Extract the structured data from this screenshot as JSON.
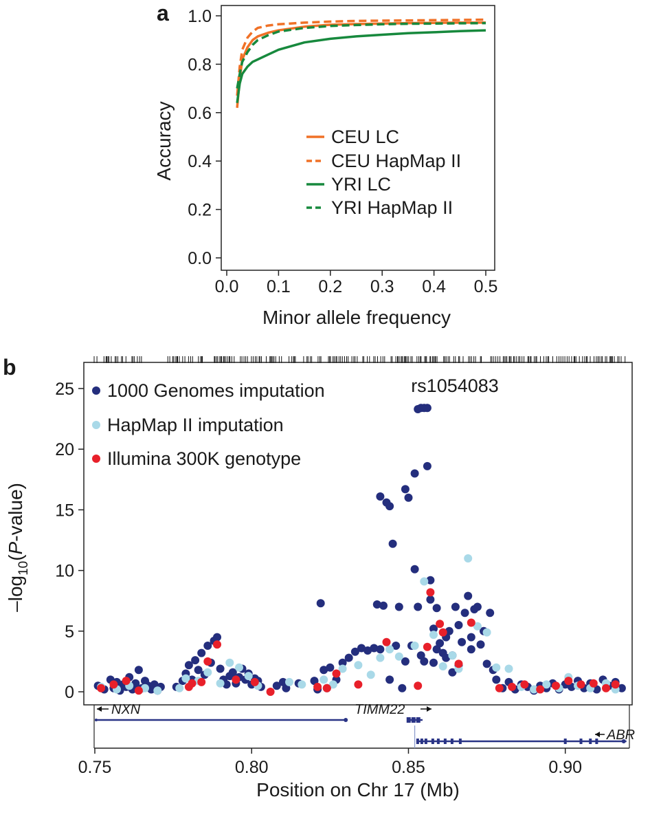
{
  "colors": {
    "ceu": "#f07127",
    "yri": "#17893d",
    "kg": "#242e7d",
    "hapmap": "#a9d9e8",
    "illumina": "#e8202a",
    "gene": "#2a3486"
  },
  "chart_data": [
    {
      "panel": "a",
      "type": "line",
      "xlabel": "Minor allele frequency",
      "ylabel": "Accuracy",
      "xlim": [
        0,
        0.5
      ],
      "ylim": [
        0,
        1
      ],
      "xticks": [
        "0.0",
        "0.1",
        "0.2",
        "0.3",
        "0.4",
        "0.5"
      ],
      "yticks": [
        "0.0",
        "0.2",
        "0.4",
        "0.6",
        "0.8",
        "1.0"
      ],
      "legend_position": "bottom-right",
      "series": [
        {
          "name": "CEU LC",
          "color": "ceu",
          "dash": false,
          "x": [
            0.02,
            0.025,
            0.03,
            0.04,
            0.05,
            0.06,
            0.08,
            0.1,
            0.15,
            0.2,
            0.25,
            0.3,
            0.35,
            0.4,
            0.45,
            0.5
          ],
          "y": [
            0.62,
            0.74,
            0.82,
            0.87,
            0.9,
            0.915,
            0.93,
            0.94,
            0.955,
            0.963,
            0.966,
            0.968,
            0.97,
            0.971,
            0.972,
            0.972
          ]
        },
        {
          "name": "CEU HapMap II",
          "color": "ceu",
          "dash": true,
          "x": [
            0.02,
            0.025,
            0.03,
            0.04,
            0.05,
            0.06,
            0.08,
            0.1,
            0.15,
            0.2,
            0.25,
            0.3,
            0.35,
            0.4,
            0.45,
            0.5
          ],
          "y": [
            0.67,
            0.79,
            0.86,
            0.91,
            0.935,
            0.95,
            0.96,
            0.965,
            0.972,
            0.976,
            0.979,
            0.98,
            0.981,
            0.982,
            0.983,
            0.984
          ]
        },
        {
          "name": "YRI LC",
          "color": "yri",
          "dash": false,
          "x": [
            0.02,
            0.025,
            0.03,
            0.04,
            0.05,
            0.06,
            0.08,
            0.1,
            0.15,
            0.2,
            0.25,
            0.3,
            0.35,
            0.4,
            0.45,
            0.5
          ],
          "y": [
            0.64,
            0.72,
            0.76,
            0.79,
            0.81,
            0.82,
            0.84,
            0.86,
            0.89,
            0.905,
            0.915,
            0.922,
            0.928,
            0.932,
            0.937,
            0.94
          ]
        },
        {
          "name": "YRI HapMap II",
          "color": "yri",
          "dash": true,
          "x": [
            0.02,
            0.025,
            0.03,
            0.04,
            0.05,
            0.06,
            0.08,
            0.1,
            0.15,
            0.2,
            0.25,
            0.3,
            0.35,
            0.4,
            0.45,
            0.5
          ],
          "y": [
            0.7,
            0.76,
            0.81,
            0.85,
            0.88,
            0.9,
            0.92,
            0.935,
            0.95,
            0.958,
            0.962,
            0.965,
            0.967,
            0.968,
            0.969,
            0.97
          ]
        }
      ]
    },
    {
      "panel": "b",
      "type": "scatter",
      "xlabel": "Position on Chr 17 (Mb)",
      "ylabel_prefix": "–log",
      "ylabel_sub": "10",
      "ylabel_open": "(",
      "ylabel_italic": "P",
      "ylabel_suffix": "-value)",
      "xlim": [
        0.75,
        0.92
      ],
      "ylim": [
        -1,
        27
      ],
      "xticks": [
        "0.75",
        "0.80",
        "0.85",
        "0.90"
      ],
      "yticks": [
        "0",
        "5",
        "10",
        "15",
        "20",
        "25"
      ],
      "annotation": {
        "text": "rs1054083",
        "x": 0.8555,
        "y": 23.3
      },
      "legend_position": "top-left",
      "series": [
        {
          "name": "1000 Genomes imputation",
          "color": "kg",
          "points": [
            [
              0.751,
              0.5
            ],
            [
              0.753,
              0.2
            ],
            [
              0.755,
              1.0
            ],
            [
              0.756,
              0.3
            ],
            [
              0.757,
              0.8
            ],
            [
              0.758,
              0.1
            ],
            [
              0.759,
              0.6
            ],
            [
              0.76,
              0.4
            ],
            [
              0.761,
              1.2
            ],
            [
              0.762,
              0.2
            ],
            [
              0.763,
              0.7
            ],
            [
              0.764,
              1.8
            ],
            [
              0.765,
              0.3
            ],
            [
              0.766,
              0.9
            ],
            [
              0.767,
              0.5
            ],
            [
              0.768,
              0.2
            ],
            [
              0.769,
              0.6
            ],
            [
              0.77,
              0.1
            ],
            [
              0.771,
              0.4
            ],
            [
              0.776,
              0.4
            ],
            [
              0.778,
              0.9
            ],
            [
              0.779,
              1.5
            ],
            [
              0.78,
              2.2
            ],
            [
              0.781,
              1.0
            ],
            [
              0.782,
              2.6
            ],
            [
              0.783,
              1.8
            ],
            [
              0.784,
              3.2
            ],
            [
              0.785,
              1.4
            ],
            [
              0.786,
              3.8
            ],
            [
              0.787,
              2.4
            ],
            [
              0.788,
              4.2
            ],
            [
              0.789,
              4.5
            ],
            [
              0.79,
              1.9
            ],
            [
              0.791,
              1.0
            ],
            [
              0.792,
              0.6
            ],
            [
              0.793,
              1.3
            ],
            [
              0.794,
              1.6
            ],
            [
              0.795,
              0.7
            ],
            [
              0.796,
              1.2
            ],
            [
              0.797,
              1.9
            ],
            [
              0.798,
              1.0
            ],
            [
              0.799,
              1.5
            ],
            [
              0.8,
              0.6
            ],
            [
              0.801,
              1.1
            ],
            [
              0.802,
              0.9
            ],
            [
              0.803,
              0.4
            ],
            [
              0.808,
              0.5
            ],
            [
              0.81,
              0.8
            ],
            [
              0.811,
              0.3
            ],
            [
              0.815,
              0.7
            ],
            [
              0.82,
              0.9
            ],
            [
              0.821,
              0.2
            ],
            [
              0.822,
              7.3
            ],
            [
              0.823,
              1.8
            ],
            [
              0.824,
              0.3
            ],
            [
              0.825,
              2.0
            ],
            [
              0.827,
              1.0
            ],
            [
              0.829,
              2.4
            ],
            [
              0.831,
              2.8
            ],
            [
              0.833,
              3.3
            ],
            [
              0.835,
              3.6
            ],
            [
              0.837,
              3.4
            ],
            [
              0.839,
              3.6
            ],
            [
              0.84,
              7.2
            ],
            [
              0.841,
              16.1
            ],
            [
              0.841,
              3.5
            ],
            [
              0.842,
              7.1
            ],
            [
              0.843,
              15.6
            ],
            [
              0.844,
              15.3
            ],
            [
              0.844,
              1.0
            ],
            [
              0.845,
              12.2
            ],
            [
              0.846,
              3.8
            ],
            [
              0.847,
              7.0
            ],
            [
              0.848,
              0.3
            ],
            [
              0.849,
              2.5
            ],
            [
              0.849,
              16.7
            ],
            [
              0.85,
              16.0
            ],
            [
              0.851,
              3.8
            ],
            [
              0.852,
              10.1
            ],
            [
              0.853,
              7.0
            ],
            [
              0.852,
              18.0
            ],
            [
              0.853,
              23.3
            ],
            [
              0.854,
              23.4
            ],
            [
              0.855,
              23.4
            ],
            [
              0.856,
              23.4
            ],
            [
              0.856,
              18.6
            ],
            [
              0.857,
              9.2
            ],
            [
              0.857,
              7.6
            ],
            [
              0.858,
              5.2
            ],
            [
              0.858,
              2.4
            ],
            [
              0.859,
              6.9
            ],
            [
              0.86,
              4.0
            ],
            [
              0.861,
              3.2
            ],
            [
              0.862,
              2.8
            ],
            [
              0.863,
              5.0
            ],
            [
              0.864,
              1.6
            ],
            [
              0.865,
              7.0
            ],
            [
              0.866,
              2.2
            ],
            [
              0.867,
              4.1
            ],
            [
              0.868,
              6.5
            ],
            [
              0.869,
              7.9
            ],
            [
              0.87,
              3.5
            ],
            [
              0.871,
              6.8
            ],
            [
              0.872,
              7.0
            ],
            [
              0.873,
              3.9
            ],
            [
              0.874,
              5.0
            ],
            [
              0.875,
              2.3
            ],
            [
              0.876,
              6.5
            ],
            [
              0.877,
              1.8
            ],
            [
              0.878,
              1.0
            ],
            [
              0.88,
              0.3
            ],
            [
              0.882,
              0.8
            ],
            [
              0.884,
              0.2
            ],
            [
              0.886,
              0.6
            ],
            [
              0.888,
              0.4
            ],
            [
              0.89,
              0.1
            ],
            [
              0.892,
              0.5
            ],
            [
              0.894,
              0.3
            ],
            [
              0.896,
              0.7
            ],
            [
              0.898,
              0.2
            ],
            [
              0.9,
              0.6
            ],
            [
              0.902,
              0.4
            ],
            [
              0.904,
              0.9
            ],
            [
              0.906,
              0.3
            ],
            [
              0.908,
              0.7
            ],
            [
              0.91,
              0.2
            ],
            [
              0.912,
              1.0
            ],
            [
              0.914,
              0.5
            ],
            [
              0.916,
              0.8
            ],
            [
              0.918,
              0.3
            ],
            [
              0.854,
              3.0
            ],
            [
              0.855,
              2.5
            ],
            [
              0.859,
              3.5
            ],
            [
              0.862,
              4.5
            ],
            [
              0.864,
              3.0
            ],
            [
              0.866,
              5.5
            ],
            [
              0.87,
              4.5
            ]
          ]
        },
        {
          "name": "HapMap II imputation",
          "color": "hapmap",
          "points": [
            [
              0.752,
              0.4
            ],
            [
              0.757,
              0.2
            ],
            [
              0.761,
              0.5
            ],
            [
              0.766,
              0.3
            ],
            [
              0.77,
              0.1
            ],
            [
              0.777,
              0.3
            ],
            [
              0.779,
              1.1
            ],
            [
              0.783,
              0.9
            ],
            [
              0.786,
              1.6
            ],
            [
              0.79,
              0.7
            ],
            [
              0.793,
              2.4
            ],
            [
              0.796,
              2.0
            ],
            [
              0.799,
              1.3
            ],
            [
              0.802,
              0.5
            ],
            [
              0.812,
              0.8
            ],
            [
              0.816,
              0.6
            ],
            [
              0.823,
              1.0
            ],
            [
              0.826,
              0.6
            ],
            [
              0.829,
              1.9
            ],
            [
              0.834,
              2.2
            ],
            [
              0.838,
              1.4
            ],
            [
              0.841,
              2.8
            ],
            [
              0.844,
              3.5
            ],
            [
              0.847,
              2.9
            ],
            [
              0.852,
              3.8
            ],
            [
              0.855,
              9.1
            ],
            [
              0.858,
              4.7
            ],
            [
              0.861,
              2.1
            ],
            [
              0.864,
              3.0
            ],
            [
              0.866,
              1.9
            ],
            [
              0.869,
              11.0
            ],
            [
              0.872,
              5.4
            ],
            [
              0.875,
              4.9
            ],
            [
              0.878,
              2.0
            ],
            [
              0.882,
              1.9
            ],
            [
              0.886,
              0.4
            ],
            [
              0.89,
              0.2
            ],
            [
              0.894,
              0.6
            ],
            [
              0.898,
              0.3
            ],
            [
              0.901,
              1.2
            ],
            [
              0.904,
              0.5
            ],
            [
              0.908,
              0.3
            ],
            [
              0.913,
              0.7
            ],
            [
              0.916,
              0.2
            ]
          ]
        },
        {
          "name": "Illumina 300K genotype",
          "color": "illumina",
          "points": [
            [
              0.752,
              0.3
            ],
            [
              0.756,
              0.6
            ],
            [
              0.76,
              0.9
            ],
            [
              0.764,
              0.1
            ],
            [
              0.78,
              0.4
            ],
            [
              0.781,
              0.7
            ],
            [
              0.784,
              0.8
            ],
            [
              0.786,
              2.5
            ],
            [
              0.789,
              3.9
            ],
            [
              0.795,
              1.0
            ],
            [
              0.801,
              0.8
            ],
            [
              0.806,
              0.0
            ],
            [
              0.821,
              0.4
            ],
            [
              0.824,
              0.3
            ],
            [
              0.827,
              1.5
            ],
            [
              0.834,
              0.6
            ],
            [
              0.843,
              4.1
            ],
            [
              0.853,
              0.5
            ],
            [
              0.856,
              3.7
            ],
            [
              0.857,
              8.2
            ],
            [
              0.86,
              5.6
            ],
            [
              0.861,
              4.9
            ],
            [
              0.866,
              2.3
            ],
            [
              0.87,
              5.7
            ],
            [
              0.879,
              0.3
            ],
            [
              0.883,
              0.4
            ],
            [
              0.887,
              0.6
            ],
            [
              0.892,
              0.2
            ],
            [
              0.897,
              0.5
            ],
            [
              0.901,
              0.9
            ],
            [
              0.905,
              0.6
            ],
            [
              0.909,
              0.7
            ],
            [
              0.913,
              0.3
            ],
            [
              0.916,
              0.6
            ]
          ]
        }
      ],
      "genes": [
        {
          "name": "NXN",
          "start": 0.75,
          "end": 0.83,
          "direction": "left",
          "label_x": 0.75,
          "row": 1
        },
        {
          "name": "TIMM22",
          "start": 0.8505,
          "end": 0.8545,
          "direction": "right",
          "label_x": 0.8505,
          "row": 1
        },
        {
          "name": "ABR",
          "start": 0.8525,
          "end": 0.9195,
          "direction": "left",
          "label_x": 0.9195,
          "row": 2
        }
      ]
    }
  ]
}
